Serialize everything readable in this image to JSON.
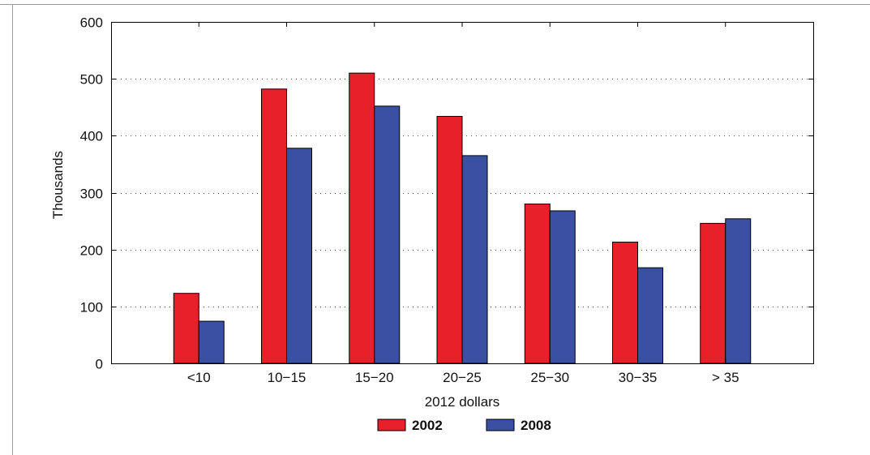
{
  "chart_data": {
    "type": "bar",
    "title": "",
    "xlabel": "2012 dollars",
    "ylabel": "Thousands",
    "categories": [
      "<10",
      "10−15",
      "15−20",
      "20−25",
      "25−30",
      "30−35",
      "> 35"
    ],
    "series": [
      {
        "name": "2002",
        "color": "#e8202a",
        "values": [
          123,
          482,
          510,
          434,
          280,
          213,
          246
        ]
      },
      {
        "name": "2008",
        "color": "#3a50a2",
        "values": [
          74,
          378,
          452,
          365,
          268,
          168,
          254
        ]
      }
    ],
    "ylim": [
      0,
      600
    ],
    "yticks": [
      0,
      100,
      200,
      300,
      400,
      500,
      600
    ],
    "grid": true,
    "legend_position": "bottom-center"
  }
}
